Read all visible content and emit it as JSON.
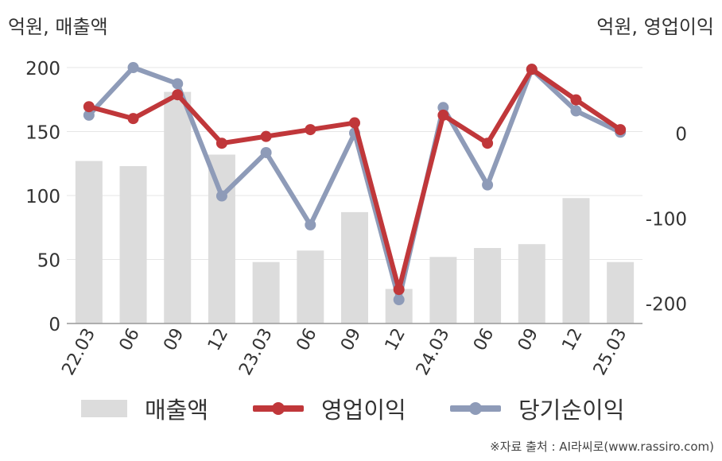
{
  "chart_data": {
    "type": "bar+line",
    "unit_left": "억원, 매출액",
    "unit_right": "억원, 영업이익",
    "categories": [
      "22.03",
      "06",
      "09",
      "12",
      "23.03",
      "06",
      "09",
      "12",
      "24.03",
      "06",
      "09",
      "12",
      "25.03"
    ],
    "y_left": {
      "lim": [
        0,
        200
      ],
      "ticks": [
        0,
        50,
        100,
        150,
        200
      ]
    },
    "y_right": {
      "lim": [
        -224,
        77
      ],
      "ticks": [
        -200,
        -100,
        0
      ]
    },
    "series": [
      {
        "name": "매출액",
        "kind": "bar",
        "axis": "left",
        "color": "#dcdcdc",
        "values": [
          127,
          123,
          181,
          132,
          48,
          57,
          87,
          27,
          52,
          59,
          62,
          98,
          48
        ]
      },
      {
        "name": "당기순이익",
        "kind": "line",
        "axis": "right",
        "color": "#8e9bb8",
        "values": [
          21,
          77,
          58,
          -74,
          -23,
          -108,
          0,
          -196,
          30,
          -61,
          75,
          26,
          1
        ]
      },
      {
        "name": "영업이익",
        "kind": "line",
        "axis": "right",
        "color": "#c0373a",
        "values": [
          31,
          17,
          45,
          -12,
          -4,
          4,
          12,
          -184,
          21,
          -12,
          75,
          39,
          4
        ]
      }
    ],
    "grid": true
  },
  "legend": {
    "bar": "매출액",
    "op": "영업이익",
    "net": "당기순이익"
  },
  "source": "※자료 출처 : AI라씨로(www.rassiro.com)"
}
